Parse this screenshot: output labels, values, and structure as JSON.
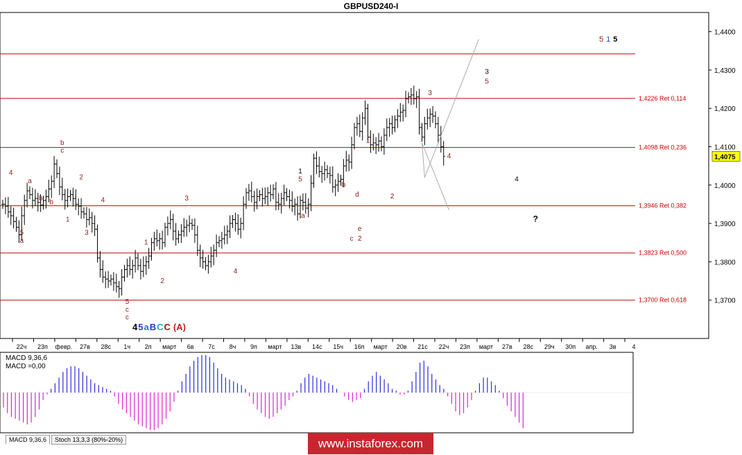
{
  "chart_data": [
    {
      "type": "candlestick",
      "title": "GBPUSD240-I",
      "timeframe": "H4",
      "ylim": [
        1.36,
        1.445
      ],
      "y_ticks": [
        "1,4400",
        "1,4300",
        "1,4200",
        "1,4100",
        "1,4000",
        "1,3900",
        "1,3800",
        "1,3700"
      ],
      "current_price_label": "1,4075",
      "x_tick_labels": [
        "22ч",
        "23п",
        "февр.",
        "27в",
        "28с",
        "1ч",
        "2п",
        "март",
        "6в",
        "7с",
        "8ч",
        "9п",
        "март",
        "13в",
        "14с",
        "15ч",
        "16п",
        "март",
        "20в",
        "21с",
        "22ч",
        "23п",
        "март",
        "27в",
        "28с",
        "29ч",
        "30п",
        "апр.",
        "3в",
        "4"
      ],
      "fib_levels": [
        {
          "price": 1.4342,
          "label": ""
        },
        {
          "price": 1.4226,
          "label": "1,4226 Ret 0,114"
        },
        {
          "price": 1.4098,
          "label": "1,4098 Ret 0,236"
        },
        {
          "price": 1.3946,
          "label": "1,3946 Ret 0,382"
        },
        {
          "price": 1.3823,
          "label": "1,3823 Ret 0,500"
        },
        {
          "price": 1.37,
          "label": "1,3700 Ret 0,618"
        }
      ],
      "close_prices": [
        1.395,
        1.3945,
        1.393,
        1.392,
        1.3905,
        1.389,
        1.387,
        1.392,
        1.396,
        1.3985,
        1.3975,
        1.396,
        1.3965,
        1.3955,
        1.3948,
        1.396,
        1.397,
        1.399,
        1.401,
        1.4055,
        1.403,
        1.3995,
        1.3975,
        1.396,
        1.397,
        1.3975,
        1.3965,
        1.395,
        1.3945,
        1.393,
        1.3925,
        1.391,
        1.3915,
        1.39,
        1.3885,
        1.381,
        1.378,
        1.376,
        1.3755,
        1.375,
        1.3755,
        1.3745,
        1.3735,
        1.373,
        1.376,
        1.378,
        1.379,
        1.378,
        1.379,
        1.381,
        1.379,
        1.3775,
        1.379,
        1.38,
        1.3815,
        1.385,
        1.386,
        1.3855,
        1.386,
        1.385,
        1.389,
        1.39,
        1.391,
        1.388,
        1.386,
        1.387,
        1.388,
        1.389,
        1.3895,
        1.39,
        1.3895,
        1.387,
        1.383,
        1.381,
        1.38,
        1.379,
        1.38,
        1.3815,
        1.383,
        1.385,
        1.3855,
        1.386,
        1.387,
        1.388,
        1.39,
        1.391,
        1.39,
        1.3885,
        1.39,
        1.395,
        1.398,
        1.3985,
        1.397,
        1.3955,
        1.397,
        1.3975,
        1.3965,
        1.397,
        1.398,
        1.3975,
        1.399,
        1.3955,
        1.395,
        1.3965,
        1.398,
        1.397,
        1.396,
        1.3945,
        1.395,
        1.3925,
        1.396,
        1.3955,
        1.394,
        1.395,
        1.4005,
        1.407,
        1.405,
        1.4035,
        1.403,
        1.404,
        1.403,
        1.4025,
        1.3995,
        1.4,
        1.401,
        1.4015,
        1.405,
        1.4065,
        1.406,
        1.4105,
        1.415,
        1.416,
        1.414,
        1.4175,
        1.42,
        1.4125,
        1.4105,
        1.411,
        1.4105,
        1.4115,
        1.41,
        1.413,
        1.415,
        1.416,
        1.415,
        1.417,
        1.418,
        1.419,
        1.4195,
        1.4225,
        1.423,
        1.4235,
        1.4225,
        1.423,
        1.415,
        1.4125,
        1.416,
        1.4175,
        1.4185,
        1.418,
        1.416,
        1.413,
        1.41,
        1.4075
      ],
      "forecast_path": [
        {
          "bar": 155,
          "price": 1.411
        },
        {
          "bar": 156,
          "price": 1.402
        },
        {
          "bar": 176,
          "price": 1.438
        }
      ],
      "forecast_alt": [
        {
          "bar": 155,
          "price": 1.411
        },
        {
          "bar": 165,
          "price": 1.3935
        }
      ],
      "wave_labels": [
        {
          "text": "4",
          "bar": 3,
          "price": 1.4027,
          "color": "#8b1a1a"
        },
        {
          "text": "5",
          "bar": 7,
          "price": 1.387,
          "color": "#8b1a1a"
        },
        {
          "text": "a",
          "bar": 7,
          "price": 1.385,
          "color": "#8b1a1a"
        },
        {
          "text": "a",
          "bar": 10,
          "price": 1.4005,
          "color": "#8b1a1a"
        },
        {
          "text": "b",
          "bar": 14,
          "price": 1.396,
          "color": "#8b1a1a"
        },
        {
          "text": "b",
          "bar": 18,
          "price": 1.395,
          "color": "#8b1a1a"
        },
        {
          "text": "b",
          "bar": 22,
          "price": 1.4105,
          "color": "#8b1a1a"
        },
        {
          "text": "c",
          "bar": 22,
          "price": 1.4085,
          "color": "#8b1a1a"
        },
        {
          "text": "1",
          "bar": 24,
          "price": 1.3905,
          "color": "#8b1a1a"
        },
        {
          "text": "2",
          "bar": 29,
          "price": 1.4015,
          "color": "#8b1a1a"
        },
        {
          "text": "3",
          "bar": 31,
          "price": 1.387,
          "color": "#8b1a1a"
        },
        {
          "text": "4",
          "bar": 37,
          "price": 1.3955,
          "color": "#8b1a1a"
        },
        {
          "text": "1",
          "bar": 53,
          "price": 1.3845,
          "color": "#8b1a1a"
        },
        {
          "text": "2",
          "bar": 59,
          "price": 1.3745,
          "color": "#8b1a1a"
        },
        {
          "text": "5",
          "bar": 46,
          "price": 1.369,
          "color": "#8b1a1a"
        },
        {
          "text": "c",
          "bar": 46,
          "price": 1.367,
          "color": "#8b1a1a"
        },
        {
          "text": "c",
          "bar": 46,
          "price": 1.365,
          "color": "#8b1a1a"
        },
        {
          "text": "3",
          "bar": 68,
          "price": 1.396,
          "color": "#8b1a1a"
        },
        {
          "text": "4",
          "bar": 86,
          "price": 1.377,
          "color": "#8b1a1a"
        },
        {
          "text": "1",
          "bar": 110,
          "price": 1.403,
          "color": "#000000"
        },
        {
          "text": "5",
          "bar": 110,
          "price": 1.401,
          "color": "#8b1a1a"
        },
        {
          "text": "a",
          "bar": 111,
          "price": 1.3915,
          "color": "#8b1a1a"
        },
        {
          "text": "b",
          "bar": 126,
          "price": 1.3995,
          "color": "#8b1a1a"
        },
        {
          "text": "c",
          "bar": 129,
          "price": 1.3855,
          "color": "#8b1a1a"
        },
        {
          "text": "d",
          "bar": 131,
          "price": 1.397,
          "color": "#8b1a1a"
        },
        {
          "text": "e",
          "bar": 132,
          "price": 1.388,
          "color": "#8b1a1a"
        },
        {
          "text": "2",
          "bar": 132,
          "price": 1.3855,
          "color": "#8b1a1a"
        },
        {
          "text": "1",
          "bar": 135,
          "price": 1.411,
          "color": "#8b1a1a"
        },
        {
          "text": "2",
          "bar": 144,
          "price": 1.3965,
          "color": "#8b1a1a"
        },
        {
          "text": "3",
          "bar": 158,
          "price": 1.4235,
          "color": "#8b1a1a"
        },
        {
          "text": "4",
          "bar": 165,
          "price": 1.407,
          "color": "#8b1a1a"
        },
        {
          "text": "3",
          "bar": 179,
          "price": 1.429,
          "color": "#000000"
        },
        {
          "text": "5",
          "bar": 179,
          "price": 1.4265,
          "color": "#8b1a1a"
        },
        {
          "text": "4",
          "bar": 190,
          "price": 1.401,
          "color": "#000000"
        },
        {
          "text": "?",
          "bar": 197,
          "price": 1.3905,
          "color": "#000000"
        }
      ],
      "big_wave_labels": [
        {
          "text": "4",
          "color": "#000000"
        },
        {
          "text": "5",
          "color": "#1a3fc4"
        },
        {
          "text": "a",
          "color": "#2e6edb"
        },
        {
          "text": "B",
          "color": "#1a3fc4"
        },
        {
          "text": "C",
          "color": "#2aa5c8"
        },
        {
          "text": "C",
          "color": "#8b1a1a"
        },
        {
          "text": "(A)",
          "color": "#c21e1e"
        }
      ],
      "top_right_labels": [
        {
          "text": "5",
          "color": "#8b1a1a"
        },
        {
          "text": "1",
          "color": "#1a3fc4"
        },
        {
          "text": "5",
          "color": "#000000"
        }
      ]
    },
    {
      "type": "bar",
      "title": "MACD 9,36,6",
      "value_label": "MACD =0,00",
      "values": [
        -0.4,
        -0.55,
        -0.65,
        -0.7,
        -0.75,
        -0.8,
        -0.85,
        -0.8,
        -0.65,
        -0.45,
        -0.2,
        -0.05,
        0.1,
        0.25,
        0.4,
        0.55,
        0.65,
        0.7,
        0.7,
        0.65,
        0.55,
        0.45,
        0.35,
        0.25,
        0.2,
        0.15,
        0.1,
        0.05,
        -0.1,
        -0.3,
        -0.45,
        -0.55,
        -0.65,
        -0.75,
        -0.85,
        -0.9,
        -0.95,
        -1.0,
        -1.0,
        -0.95,
        -0.85,
        -0.7,
        -0.5,
        -0.25,
        0.05,
        0.3,
        0.5,
        0.7,
        0.85,
        0.95,
        1.0,
        1.0,
        0.95,
        0.8,
        0.65,
        0.5,
        0.4,
        0.35,
        0.3,
        0.25,
        0.2,
        0.1,
        -0.1,
        -0.3,
        -0.45,
        -0.55,
        -0.65,
        -0.7,
        -0.65,
        -0.55,
        -0.45,
        -0.35,
        -0.2,
        -0.1,
        0.05,
        0.25,
        0.4,
        0.5,
        0.45,
        0.4,
        0.35,
        0.3,
        0.25,
        0.2,
        0.1,
        0.0,
        -0.1,
        -0.2,
        -0.25,
        -0.2,
        -0.15,
        0.1,
        0.3,
        0.45,
        0.55,
        0.45,
        0.35,
        0.25,
        0.1,
        0.05,
        -0.05,
        -0.05,
        0.05,
        0.3,
        0.55,
        0.8,
        0.85,
        0.7,
        0.5,
        0.35,
        0.2,
        0.1,
        -0.1,
        -0.3,
        -0.5,
        -0.6,
        -0.55,
        -0.4,
        -0.2,
        0.05,
        0.25,
        0.4,
        0.4,
        0.3,
        0.2,
        0.05,
        -0.15,
        -0.35,
        -0.5,
        -0.65,
        -0.8,
        -0.95
      ]
    }
  ],
  "tabs": [
    {
      "label": "MACD 9,36,6",
      "active": true
    },
    {
      "label": "Stoch 13,3,3 (80%-20%)",
      "active": false
    }
  ],
  "watermark": "www.instaforex.com",
  "colors": {
    "axis": "#000000",
    "fib": "#cc0000",
    "fib_label": "#cc0000",
    "candle": "#000000",
    "forecast": "#aaaaaa",
    "macd_pos": "#2a2ae0",
    "macd_neg": "#e020d0",
    "price_box": "#ffff00"
  }
}
